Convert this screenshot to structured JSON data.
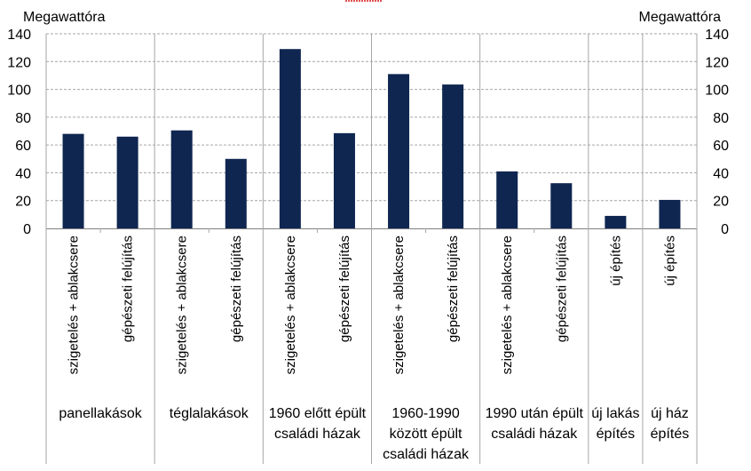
{
  "chart_data": {
    "type": "bar",
    "title": "",
    "ylabel_left": "Megawattóra",
    "ylabel_right": "Megawattóra",
    "ylim": [
      0,
      140
    ],
    "yticks": [
      0,
      20,
      40,
      60,
      80,
      100,
      120,
      140
    ],
    "grid": true,
    "bar_color": "#0f2650",
    "groups": [
      {
        "label": [
          "panellakások"
        ],
        "count": 2
      },
      {
        "label": [
          "téglalakások"
        ],
        "count": 2
      },
      {
        "label": [
          "1960 előtt épült",
          "családi házak"
        ],
        "count": 2
      },
      {
        "label": [
          "1960-1990",
          "között épült",
          "családi házak"
        ],
        "count": 2
      },
      {
        "label": [
          "1990 után épült",
          "családi házak"
        ],
        "count": 2
      },
      {
        "label": [
          "új lakás",
          "építés"
        ],
        "count": 1
      },
      {
        "label": [
          "új ház",
          "építés"
        ],
        "count": 1
      }
    ],
    "categories": [
      "szigetelés + ablakcsere",
      "gépészeti felújítás",
      "szigetelés + ablakcsere",
      "gépészeti felújítás",
      "szigetelés + ablakcsere",
      "gépészeti felújítás",
      "szigetelés + ablakcsere",
      "gépészeti felújítás",
      "szigetelés + ablakcsere",
      "gépészeti felújítás",
      "új építés",
      "új építés"
    ],
    "values": [
      68,
      66,
      70.5,
      50,
      129,
      68.5,
      111,
      103.5,
      41,
      32.5,
      9,
      20.5
    ]
  }
}
